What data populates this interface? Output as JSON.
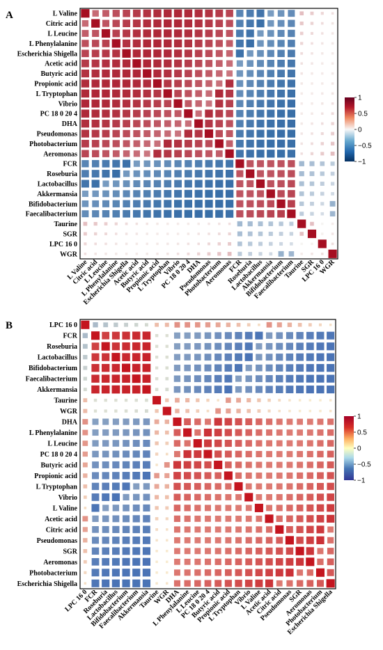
{
  "colors": {
    "positive": "#b2182b",
    "neutral": "#f7f7f7",
    "negative": "#2166ac",
    "grid": "#ffffff",
    "frame": "#000000"
  },
  "chart_data": [
    {
      "type": "heatmap",
      "panel_letter": "A",
      "title": "",
      "row_labels": [
        "L Valine",
        "Citric acid",
        "L Leucine",
        "L Phenylalanine",
        "Escherichia Shigella",
        "Acetic acid",
        "Butyric acid",
        "Propionic acid",
        "L Tryptophan",
        "Vibrio",
        "PC 18 0 20 4",
        "DHA",
        "Pseudomonas",
        "Photobacterium",
        "Aeromonas",
        "FCR",
        "Roseburia",
        "Lactobacillus",
        "Akkermansia",
        "Bifidobacterium",
        "Faecalibacterium",
        "Taurine",
        "SGR",
        "LPC 16 0",
        "WGR"
      ],
      "col_labels": [
        "L Valine",
        "Citric acid",
        "L Leucine",
        "L Phenylalanine",
        "Escherichia Shigella",
        "Acetic acid",
        "Butyric acid",
        "Propionic acid",
        "L Tryptophan",
        "Vibrio",
        "PC 18 0 20 4",
        "DHA",
        "Pseudomonas",
        "Photobacterium",
        "Aeromonas",
        "FCR",
        "Roseburia",
        "Lactobacillus",
        "Akkermansia",
        "Bifidobacterium",
        "Faecalibacterium",
        "Taurine",
        "SGR",
        "LPC 16 0",
        "WGR"
      ],
      "legend": {
        "ticks": [
          "1",
          "0.5",
          "0",
          "−0.5",
          "−1"
        ],
        "range": [
          -1,
          1
        ],
        "placement": "right"
      },
      "groups": {
        "pos": [
          "L Valine",
          "Citric acid",
          "L Leucine",
          "L Phenylalanine",
          "Escherichia Shigella",
          "Acetic acid",
          "Butyric acid",
          "Propionic acid",
          "L Tryptophan",
          "Vibrio",
          "PC 18 0 20 4",
          "DHA",
          "Pseudomonas",
          "Photobacterium",
          "Aeromonas"
        ],
        "neg": [
          "FCR",
          "Roseburia",
          "Lactobacillus",
          "Akkermansia",
          "Bifidobacterium",
          "Faecalibacterium"
        ],
        "other": [
          "Taurine",
          "SGR",
          "LPC 16 0",
          "WGR"
        ]
      },
      "correlations": {
        "within_pos": 0.72,
        "within_neg": 0.82,
        "between_pos_neg": -0.72,
        "other_with_pos": 0.25,
        "other_with_neg": -0.3,
        "other_with_other": 0.12
      }
    },
    {
      "type": "heatmap",
      "panel_letter": "B",
      "title": "",
      "row_labels": [
        "LPC 16 0",
        "FCR",
        "Roseburia",
        "Lactobacillus",
        "Bifidobacterium",
        "Faecalibacterium",
        "Akkermansia",
        "Taurine",
        "WGR",
        "DHA",
        "L Phenylalanine",
        "L Leucine",
        "PC 18 0 20 4",
        "Butyric acid",
        "Propionic acid",
        "L Tryptophan",
        "Vibrio",
        "L Valine",
        "Acetic acid",
        "Citric acid",
        "Pseudomonas",
        "SGR",
        "Aeromonas",
        "Photobacterium",
        "Escherichia Shigella"
      ],
      "col_labels": [
        "LPC 16 0",
        "FCR",
        "Roseburia",
        "Lactobacillus",
        "Bifidobacterium",
        "Faecalibacterium",
        "Akkermansia",
        "Taurine",
        "WGR",
        "DHA",
        "L Phenylalanine",
        "L Leucine",
        "PC 18 0 20 4",
        "Butyric acid",
        "Propionic acid",
        "L Tryptophan",
        "Vibrio",
        "L Valine",
        "Acetic acid",
        "Citric acid",
        "Pseudomonas",
        "SGR",
        "Aeromonas",
        "Photobacterium",
        "Escherichia Shigella"
      ],
      "legend": {
        "ticks": [
          "1",
          "0.5",
          "0",
          "−0.5",
          "−1"
        ],
        "range": [
          -1,
          1
        ],
        "placement": "right"
      },
      "groups": {
        "pos": [
          "DHA",
          "L Phenylalanine",
          "L Leucine",
          "PC 18 0 20 4",
          "Butyric acid",
          "Propionic acid",
          "L Tryptophan",
          "Vibrio",
          "L Valine",
          "Acetic acid",
          "Citric acid",
          "Pseudomonas",
          "SGR",
          "Aeromonas",
          "Photobacterium",
          "Escherichia Shigella"
        ],
        "neg": [
          "FCR",
          "Roseburia",
          "Lactobacillus",
          "Bifidobacterium",
          "Faecalibacterium",
          "Akkermansia"
        ],
        "other": [
          "LPC 16 0",
          "Taurine",
          "WGR"
        ]
      },
      "correlations": {
        "within_pos": 0.72,
        "within_neg": 0.82,
        "between_pos_neg": -0.72,
        "other_with_pos": 0.25,
        "other_with_neg": -0.3,
        "other_with_other": 0.12
      }
    }
  ]
}
